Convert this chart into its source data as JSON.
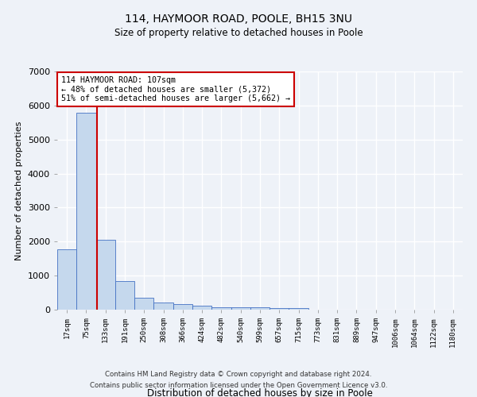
{
  "title_line1": "114, HAYMOOR ROAD, POOLE, BH15 3NU",
  "title_line2": "Size of property relative to detached houses in Poole",
  "xlabel": "Distribution of detached houses by size in Poole",
  "ylabel": "Number of detached properties",
  "categories": [
    "17sqm",
    "75sqm",
    "133sqm",
    "191sqm",
    "250sqm",
    "308sqm",
    "366sqm",
    "424sqm",
    "482sqm",
    "540sqm",
    "599sqm",
    "657sqm",
    "715sqm",
    "773sqm",
    "831sqm",
    "889sqm",
    "947sqm",
    "1006sqm",
    "1064sqm",
    "1122sqm",
    "1180sqm"
  ],
  "values": [
    1780,
    5780,
    2060,
    830,
    340,
    220,
    160,
    110,
    80,
    70,
    60,
    50,
    50,
    0,
    0,
    0,
    0,
    0,
    0,
    0,
    0
  ],
  "bar_color": "#c5d8ed",
  "bar_edge_color": "#4472c4",
  "annotation_text": "114 HAYMOOR ROAD: 107sqm\n← 48% of detached houses are smaller (5,372)\n51% of semi-detached houses are larger (5,662) →",
  "annotation_box_color": "#ffffff",
  "annotation_box_edge_color": "#cc0000",
  "vline_color": "#cc0000",
  "vline_x": 1.55,
  "ylim": [
    0,
    7000
  ],
  "yticks": [
    0,
    1000,
    2000,
    3000,
    4000,
    5000,
    6000,
    7000
  ],
  "bg_color": "#eef2f8",
  "grid_color": "#ffffff",
  "footer_line1": "Contains HM Land Registry data © Crown copyright and database right 2024.",
  "footer_line2": "Contains public sector information licensed under the Open Government Licence v3.0."
}
